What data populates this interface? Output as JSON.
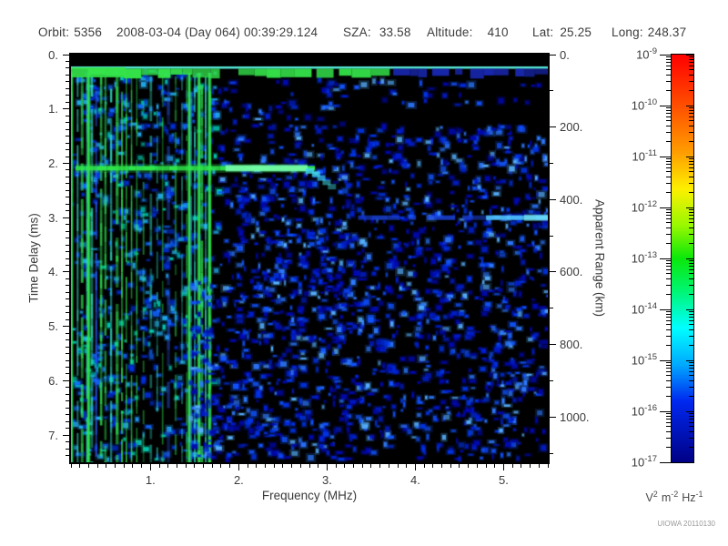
{
  "header": {
    "fields": [
      {
        "label": "Orbit:",
        "value": "5356"
      },
      {
        "label": "",
        "value": "2008-03-04 (Day 064) 00:39:29.124"
      },
      {
        "label": "SZA:",
        "value": "33.58"
      },
      {
        "label": "Altitude:",
        "value": "410"
      },
      {
        "label": "Lat:",
        "value": "25.25"
      },
      {
        "label": "Long:",
        "value": "248.37"
      }
    ]
  },
  "watermark": "UIOWA 20110130",
  "chart_data": {
    "type": "heatmap",
    "title": "Radar sounder ionogram (spectrogram of received spectral density vs frequency and time delay)",
    "xlabel": "Frequency (MHz)",
    "ylabel_left": "Time Delay (ms)",
    "ylabel_right": "Apparent Range (km)",
    "x_range_mhz": [
      0.1,
      5.5
    ],
    "x_major_ticks": [
      1,
      2,
      3,
      4,
      5
    ],
    "x_tick_labels": [
      "1.",
      "2.",
      "3.",
      "4.",
      "5."
    ],
    "x_minor_step_mhz": 0.1,
    "y_range_ms": [
      0,
      7.5
    ],
    "y_major_ticks": [
      0,
      1,
      2,
      3,
      4,
      5,
      6,
      7
    ],
    "y_tick_labels": [
      "0.",
      "1.",
      "2.",
      "3.",
      "4.",
      "5.",
      "6.",
      "7."
    ],
    "y_minor_step_ms": 0.125,
    "right_range_km": [
      0,
      1125
    ],
    "right_major_ticks": [
      0,
      200,
      400,
      600,
      800,
      1000
    ],
    "right_tick_labels": [
      "0.",
      "200.",
      "400.",
      "600.",
      "800.",
      "1000."
    ],
    "right_minor_step_km": 100,
    "grid": false,
    "colorbar": {
      "scale": "log",
      "base": "10",
      "tick_exponents": [
        "-9",
        "-10",
        "-11",
        "-12",
        "-13",
        "-14",
        "-15",
        "-16",
        "-17"
      ],
      "units_parts": [
        [
          "V",
          "2"
        ],
        [
          "m",
          "-2"
        ],
        [
          "Hz",
          "-1"
        ]
      ],
      "gradient_stops": [
        [
          0.0,
          "#ff0000"
        ],
        [
          0.13,
          "#ff5200"
        ],
        [
          0.24,
          "#ff9d00"
        ],
        [
          0.33,
          "#fdf000"
        ],
        [
          0.42,
          "#97f800"
        ],
        [
          0.5,
          "#0ae80a"
        ],
        [
          0.58,
          "#00f573"
        ],
        [
          0.67,
          "#00ffff"
        ],
        [
          0.76,
          "#00aaff"
        ],
        [
          0.85,
          "#0028f0"
        ],
        [
          1.0,
          "#000085"
        ]
      ]
    },
    "features": {
      "background": "#000000",
      "top_black_band_max_ms": 0.22,
      "first_echo_band": {
        "t_ms": 0.3,
        "cyan_line_color": "#5af2e0",
        "green_blob_color": "#35e54a",
        "blue_blob_color": "#1e30d8",
        "green_max_f_mhz": 3.7
      },
      "resonance_stripes": {
        "f_min_mhz": 0.105,
        "f_max_mhz": 1.72,
        "bright_f_mhz": [
          0.105,
          0.3,
          1.44,
          1.55,
          1.67
        ],
        "dim_zone_mhz": [
          0.85,
          1.42
        ],
        "green": "#2ee04e",
        "cyan": "#30dfc0",
        "blue": "#2b5cf0"
      },
      "ionosphere_echo": {
        "t_ms": 2.09,
        "f_start_mhz": 0.15,
        "f_end_mhz": 2.78,
        "bright_f_range_mhz": [
          1.85,
          2.78
        ],
        "hook_points_f_t": [
          [
            2.8,
            2.14
          ],
          [
            2.87,
            2.2
          ],
          [
            2.93,
            2.27
          ],
          [
            2.99,
            2.35
          ],
          [
            3.05,
            2.43
          ]
        ],
        "color": "#2fe94a",
        "bright_color": "#7bffb0",
        "hook_color": "#3fd9e8"
      },
      "surface_echo": {
        "t_ms": 3.0,
        "f_start_mhz": 3.35,
        "f_end_mhz": 5.5,
        "bright_f_range_mhz": [
          4.8,
          5.5
        ],
        "color": "#1d49f0",
        "bright_color": "#55d2ff",
        "core_color": "#7ceeff"
      },
      "speckle_colors": [
        "#0009b0",
        "#001ed0",
        "#0034e8",
        "#1254ff",
        "#2d79ff",
        "#57b1ff"
      ],
      "left_noise_colors": [
        "#0030dd",
        "#1166ff",
        "#22aaee",
        "#00ccb8"
      ],
      "speckle_zones": [
        {
          "f": [
            0.1,
            1.78
          ],
          "t": [
            0.3,
            7.45
          ],
          "n": 700,
          "left": true
        },
        {
          "f": [
            1.78,
            3.25
          ],
          "t": [
            0.95,
            4.2
          ],
          "n": 240
        },
        {
          "f": [
            1.45,
            3.25
          ],
          "t": [
            4.2,
            7.45
          ],
          "n": 480
        },
        {
          "f": [
            3.25,
            5.2
          ],
          "t": [
            1.3,
            4.5
          ],
          "n": 420
        },
        {
          "f": [
            3.25,
            5.5
          ],
          "t": [
            4.5,
            7.45
          ],
          "n": 460
        },
        {
          "f": [
            5.2,
            5.5
          ],
          "t": [
            1.3,
            4.5
          ],
          "n": 70
        },
        {
          "f": [
            1.78,
            5.5
          ],
          "t": [
            0.45,
            0.95
          ],
          "n": 60
        },
        {
          "f": [
            2.0,
            3.3
          ],
          "t": [
            2.3,
            4.5
          ],
          "n": 150
        }
      ],
      "seed": 1337
    }
  }
}
